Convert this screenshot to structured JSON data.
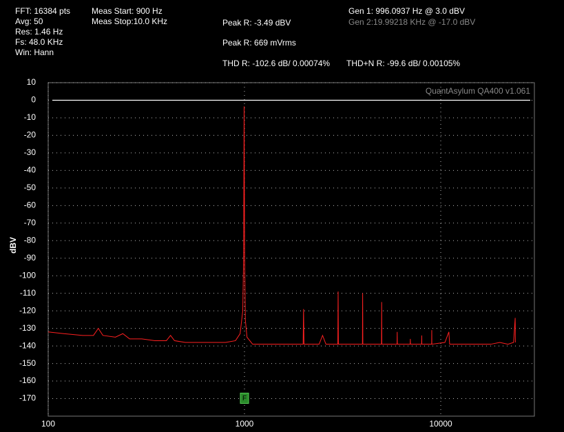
{
  "info": {
    "fft": [
      "FFT: 16384 pts",
      "Avg: 50",
      "Res: 1.46 Hz",
      "Fs: 48.0 KHz",
      "Win: Hann"
    ],
    "meas": [
      "Meas Start: 900 Hz",
      "Meas Stop:10.0 KHz"
    ],
    "peak_dbv": "Peak R: -3.49 dBV",
    "peak_rms": "Peak R: 669 mVrms",
    "thd": "THD R: -102.6 dB/ 0.00074%",
    "thdn": "THD+N R: -99.6 dB/ 0.00105%",
    "gen1": "Gen 1: 996.0937 Hz @ 3.0  dBV",
    "gen2": "Gen 2:19.99218 KHz @ -17.0  dBV",
    "watermark": "QuantAsylum QA400 v1.061"
  },
  "chart_data": {
    "type": "line",
    "y_label": "dBV",
    "log_x": true,
    "grid": true,
    "xlim": [
      100,
      30000
    ],
    "xticks": [
      100,
      1000,
      10000
    ],
    "ylim": [
      -180,
      10
    ],
    "yticks": [
      10,
      0,
      -10,
      -20,
      -30,
      -40,
      -50,
      -60,
      -70,
      -80,
      -90,
      -100,
      -110,
      -120,
      -130,
      -140,
      -150,
      -160,
      -170
    ],
    "ref_level": 0,
    "marker": {
      "label": "F",
      "x": 1000,
      "y": -170,
      "color": "#2a8a2a"
    },
    "x": [
      100,
      120,
      150,
      170,
      180,
      190,
      220,
      240,
      260,
      300,
      350,
      400,
      420,
      440,
      500,
      600,
      700,
      800,
      900,
      950,
      980,
      990,
      996,
      1002,
      1010,
      1030,
      1100,
      1300,
      1500,
      1800,
      1990,
      2000,
      2010,
      2400,
      2500,
      2600,
      2990,
      3000,
      3010,
      3500,
      3990,
      4000,
      4010,
      4500,
      4990,
      5000,
      5010,
      5500,
      5990,
      6000,
      6010,
      6990,
      7000,
      7010,
      7990,
      8000,
      8010,
      8990,
      9000,
      9010,
      10500,
      11000,
      11100,
      13000,
      15000,
      18000,
      20000,
      22000,
      23500,
      23950,
      24000
    ],
    "series": [
      {
        "name": "R",
        "color": "#ff2020",
        "values": [
          -132,
          -133,
          -134,
          -134,
          -130,
          -134,
          -135,
          -133,
          -136,
          -136,
          -137,
          -137,
          -134,
          -137,
          -138,
          -138,
          -138,
          -138,
          -137,
          -133,
          -120,
          -90,
          -3.5,
          -90,
          -125,
          -135,
          -139,
          -139,
          -139,
          -139,
          -139,
          -119,
          -139,
          -139,
          -134,
          -139,
          -139,
          -109,
          -139,
          -139,
          -139,
          -110,
          -139,
          -139,
          -139,
          -115,
          -139,
          -139,
          -139,
          -132,
          -139,
          -139,
          -136,
          -139,
          -139,
          -134,
          -139,
          -139,
          -131,
          -139,
          -138,
          -132,
          -139,
          -139,
          -139,
          -139,
          -138,
          -139,
          -138,
          -124,
          -138
        ]
      }
    ]
  }
}
